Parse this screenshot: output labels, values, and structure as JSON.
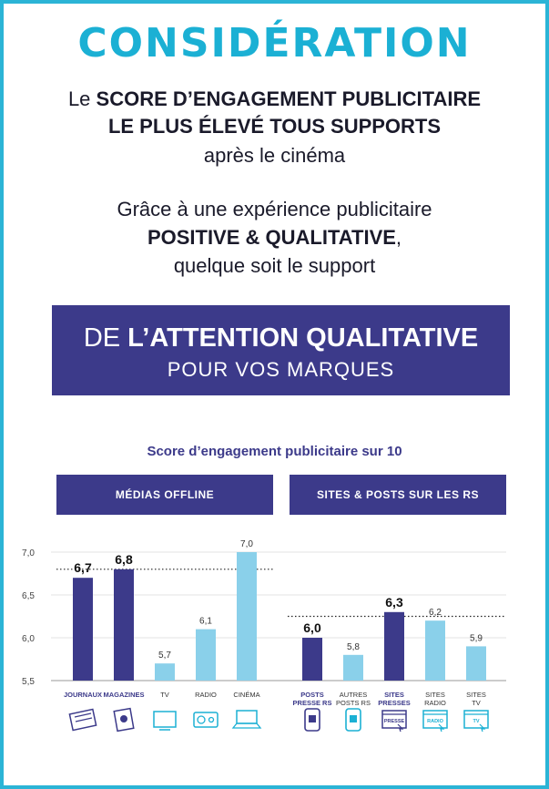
{
  "header": {
    "title": "CONSIDÉRATION",
    "l1_pre": "Le ",
    "l1_bold": "SCORE D’ENGAGEMENT PUBLICITAIRE",
    "l2_bold": "LE PLUS ÉLEVÉ TOUS SUPPORTS",
    "l3": "après le cinéma",
    "l4": "Grâce à une expérience publicitaire",
    "l5_bold": "POSITIVE & QUALITATIVE",
    "l5_suffix": ",",
    "l6": "quelque soit le support"
  },
  "banner": {
    "pre": "DE ",
    "bold": "L’ATTENTION QUALITATIVE",
    "sub": "POUR VOS MARQUES"
  },
  "colors": {
    "dark": "#3c3a8a",
    "light": "#8ad0ea",
    "cyan": "#1bb0d4"
  },
  "chart_data": {
    "type": "bar",
    "title": "Score d’engagement publicitaire sur 10",
    "ylim": [
      5.5,
      7.0
    ],
    "yticks": [
      "7,0",
      "6,5",
      "6,0",
      "5,5"
    ],
    "groups": [
      {
        "name": "MÉDIAS OFFLINE",
        "threshold": 6.8,
        "bars": [
          {
            "label": "JOURNAUX",
            "value": 6.7,
            "text": "6,7",
            "highlight": true,
            "icon": "newspaper-icon"
          },
          {
            "label": "MAGAZINES",
            "value": 6.8,
            "text": "6,8",
            "highlight": true,
            "icon": "magazine-icon"
          },
          {
            "label": "TV",
            "value": 5.7,
            "text": "5,7",
            "highlight": false,
            "icon": "tv-icon"
          },
          {
            "label": "RADIO",
            "value": 6.1,
            "text": "6,1",
            "highlight": false,
            "icon": "radio-icon"
          },
          {
            "label": "CINÉMA",
            "value": 7.0,
            "text": "7,0",
            "highlight": false,
            "icon": "cinema-icon"
          }
        ]
      },
      {
        "name": "SITES & POSTS SUR LES RS",
        "threshold": 6.25,
        "bars": [
          {
            "label": "POSTS PRESSE RS",
            "value": 6.0,
            "text": "6,0",
            "highlight": true,
            "icon": "phone-press-icon"
          },
          {
            "label": "AUTRES POSTS RS",
            "value": 5.8,
            "text": "5,8",
            "highlight": false,
            "icon": "phone-icon"
          },
          {
            "label": "SITES PRESSES",
            "value": 6.3,
            "text": "6,3",
            "highlight": true,
            "icon": "site-presse-icon"
          },
          {
            "label": "SITES RADIO",
            "value": 6.2,
            "text": "6,2",
            "highlight": false,
            "icon": "site-radio-icon"
          },
          {
            "label": "SITES TV",
            "value": 5.9,
            "text": "5,9",
            "highlight": false,
            "icon": "site-tv-icon"
          }
        ]
      }
    ]
  },
  "icon_texts": {
    "presse": "PRESSE",
    "radio": "RADIO",
    "tv": "TV"
  }
}
